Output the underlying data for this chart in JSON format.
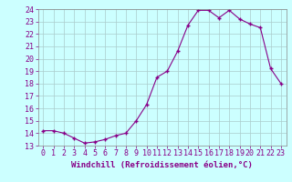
{
  "x": [
    0,
    1,
    2,
    3,
    4,
    5,
    6,
    7,
    8,
    9,
    10,
    11,
    12,
    13,
    14,
    15,
    16,
    17,
    18,
    19,
    20,
    21,
    22,
    23
  ],
  "y": [
    14.2,
    14.2,
    14.0,
    13.6,
    13.2,
    13.3,
    13.5,
    13.8,
    14.0,
    15.0,
    16.3,
    18.5,
    19.0,
    20.6,
    22.7,
    23.9,
    23.9,
    23.3,
    23.9,
    23.2,
    22.8,
    22.5,
    19.2,
    18.0
  ],
  "xlabel": "Windchill (Refroidissement éolien,°C)",
  "ylim": [
    13,
    24
  ],
  "xlim_min": -0.5,
  "xlim_max": 23.5,
  "yticks": [
    13,
    14,
    15,
    16,
    17,
    18,
    19,
    20,
    21,
    22,
    23,
    24
  ],
  "xticks": [
    0,
    1,
    2,
    3,
    4,
    5,
    6,
    7,
    8,
    9,
    10,
    11,
    12,
    13,
    14,
    15,
    16,
    17,
    18,
    19,
    20,
    21,
    22,
    23
  ],
  "line_color": "#880088",
  "bg_color": "#ccffff",
  "grid_color": "#aacccc",
  "tick_label_color": "#880088",
  "xlabel_color": "#880088",
  "xlabel_fontsize": 6.5,
  "tick_fontsize": 6.0,
  "spine_color": "#888888"
}
